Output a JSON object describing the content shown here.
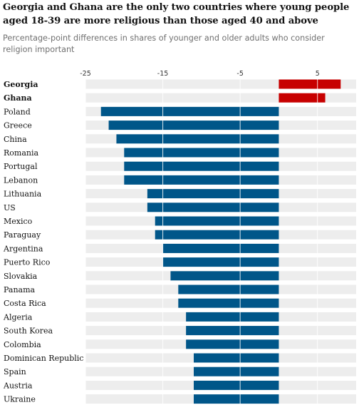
{
  "header": {
    "title": "Georgia and Ghana are the only two countries where young people aged 18-39 are more religious than those aged 40 and above",
    "subtitle": "Percentage-point differences in shares of younger and older adults who consider religion important"
  },
  "chart_data": {
    "type": "bar",
    "orientation": "horizontal",
    "title": "Georgia and Ghana are the only two countries where young people aged 18-39 are more religious than those aged 40 and above",
    "subtitle": "Percentage-point differences in shares of younger and older adults who consider religion important",
    "xlabel": "",
    "ylabel": "",
    "xlim": [
      -25,
      10
    ],
    "xticks": [
      -25,
      -15,
      -5,
      5
    ],
    "xtick_labels": [
      "-25",
      "-15",
      "-5",
      "5"
    ],
    "grid": true,
    "legend": "none",
    "colors": {
      "positive": "#c70000",
      "negative": "#005689",
      "track": "#ededed"
    },
    "categories": [
      "Georgia",
      "Ghana",
      "Poland",
      "Greece",
      "China",
      "Romania",
      "Portugal",
      "Lebanon",
      "Lithuania",
      "US",
      "Mexico",
      "Paraguay",
      "Argentina",
      "Puerto Rico",
      "Slovakia",
      "Panama",
      "Costa Rica",
      "Algeria",
      "South Korea",
      "Colombia",
      "Dominican Republic",
      "Spain",
      "Austria",
      "Ukraine"
    ],
    "bold_categories": [
      "Georgia",
      "Ghana"
    ],
    "values": [
      8,
      6,
      -23,
      -22,
      -21,
      -20,
      -20,
      -20,
      -17,
      -17,
      -16,
      -16,
      -15,
      -15,
      -14,
      -13,
      -13,
      -12,
      -12,
      -12,
      -11,
      -11,
      -11,
      -11
    ]
  }
}
